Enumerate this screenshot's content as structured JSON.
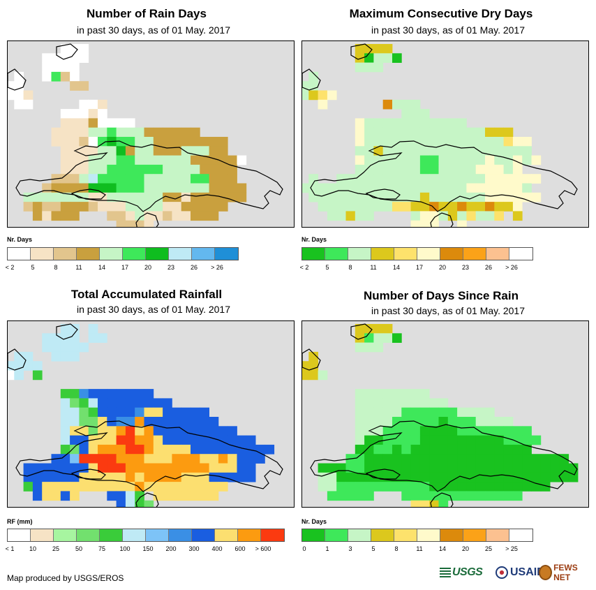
{
  "panels": [
    {
      "title": "Number of Rain Days",
      "subtitle": "in past 30 days, as of 01 May. 2017",
      "legend_title": "Nr. Days",
      "legend_colors": [
        "#ffffff",
        "#f6e3c5",
        "#e2c58d",
        "#c9a03e",
        "#c6f5c6",
        "#3ee85a",
        "#0fbd1f",
        "#bfeaf5",
        "#63b8ef",
        "#1f8fd7"
      ],
      "legend_labels": [
        "< 2",
        "5",
        "8",
        "11",
        "14",
        "17",
        "20",
        "23",
        "26",
        "> 26"
      ],
      "grid_levels": [
        "......000...................",
        "....00000..................",
        "....0000....................",
        ".0..0520......................",
        "00.....22...................",
        "001........................",
        ".00.....001..............",
        "......00010................",
        "......11130000.............",
        ".....1111445444333333.........",
        ".....1112056554433333333.......",
        "......111144634433344433......",
        "......11144455444444333330....",
        "......1114455555544443333.....",
        ".....22247555554444455333....",
        "....2333366655544444443333....",
        "..444444411444444331333333....",
        "..2322333211144441133333......",
        "...31333...221411211333.......",
        "............2221................",
        "............2....................."
      ]
    },
    {
      "title": "Maximum Consecutive Dry Days",
      "subtitle": "in past 30 days, as of 01 May. 2017",
      "legend_title": "Nr. Days",
      "legend_colors": [
        "#19c21f",
        "#3ee85a",
        "#c6f5c6",
        "#dcc81d",
        "#fde26c",
        "#fffacb",
        "#dc8a0c",
        "#fba218",
        "#fcc190",
        "#ffffff"
      ],
      "legend_labels": [
        "< 2",
        "5",
        "8",
        "11",
        "14",
        "17",
        "20",
        "23",
        "26",
        "> 26"
      ],
      "grid_levels": [
        "......3333....................",
        "......30220...................",
        "......222.....................",
        ".2.........................",
        "22..........................",
        "2345.......................",
        "..5......6222...............",
        "...........222.............",
        "......522222222222........",
        "......52222222222222333......",
        "......5222222222222222455.....",
        "......2232222222222222222.....",
        "......52222221122222522525....",
        "......222222211222255525......",
        ".2..2222222222222222555555....",
        "2222222222222222225555552.....",
        ".2222222222223222222555555....",
        "..2222222244336336336335......",
        "...22322....2552324224.3......",
        "............555..5...........",
        "............4..................."
      ]
    },
    {
      "title": "Total Accumulated Rainfall",
      "subtitle": "in past 30 days, as of 01 May. 2017",
      "legend_title": "RF (mm)",
      "legend_colors": [
        "#ffffff",
        "#f6e3c5",
        "#a7f5a0",
        "#72e06e",
        "#3acc3a",
        "#bfeaf5",
        "#7dc3f7",
        "#3a8fe5",
        "#1a5ee0",
        "#fcdf70",
        "#fc9b10",
        "#fb3a10"
      ],
      "legend_labels": [
        "< 1",
        "10",
        "25",
        "50",
        "75",
        "100",
        "150",
        "200",
        "300",
        "400",
        "600",
        "> 600"
      ],
      "grid_levels": [
        "......55.5...................",
        "....5555.55..................",
        "....55555....................",
        ".55..555......................",
        "5555.........................",
        "05.4.........................",
        "...........................",
        "......4478888888..............",
        "......534588888888.............",
        "......5534888879988888.........",
        "......55339877a88888888.........",
        "......599399ab9a888888888.......",
        "......588999bbaa98888888888.....",
        "......4389aaabba9999888888888....",
        ".....886bbbbaaa999aaa99a9888....",
        "..88888889bbbaaaaaaaaa99988.....",
        "..88888899999a9aaaa99988888.....",
        "..489999999999a999999999........",
        "...89989...8854.9999999.......",
        "............8543.................",
        "............44.................."
      ]
    },
    {
      "title": "Number of Days Since Rain",
      "subtitle": "in past 30 days, as of 01 May. 2017",
      "legend_title": "Nr. Days",
      "legend_colors": [
        "#19c21f",
        "#3ee85a",
        "#c6f5c6",
        "#dcc81d",
        "#fde26c",
        "#fffacb",
        "#dc8a0c",
        "#fba218",
        "#fcc190",
        "#ffffff"
      ],
      "legend_labels": [
        "0",
        "1",
        "3",
        "5",
        "8",
        "11",
        "14",
        "20",
        "25",
        "> 25"
      ],
      "grid_levels": [
        "......3333.....................",
        "......31220...................",
        "......222.....................",
        ".3..........................",
        "33..........................",
        "332.......................",
        "...........................",
        "......22222222...............",
        "......2222222222.............",
        "......222221111112222..........",
        "......22221111101112222.......",
        "......2221111000011111111.....",
        "......20011110000000001111.....",
        "......0011010000000000000......",
        ".....110000000000000000000000..",
        "..0001100000000000000000000000.",
        "..2200000000000000000000000000..",
        "..2211111111110000000000000.....",
        "...11111...1111111111111.......",
        "............4431................",
        "............45.................."
      ]
    }
  ],
  "credit": "Map produced by USGS/EROS",
  "logos": {
    "usgs": "USGS",
    "usaid": "USAID",
    "fews": "FEWS NET"
  }
}
